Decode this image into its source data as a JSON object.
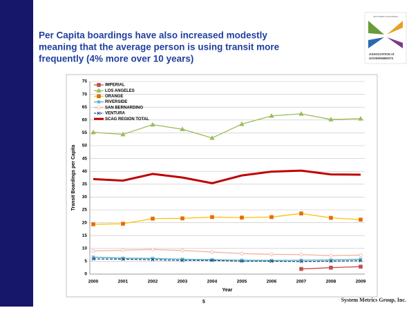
{
  "title_lines": [
    "Per Capita boardings have also increased modestly",
    "meaning that the average person is using transit more",
    "frequently (4% more over 10 years)"
  ],
  "logo": {
    "top_text": "SOUTHERN CALIFORNIA",
    "bottom_lines": [
      "ASSOCIATION of",
      "GOVERNMENTS"
    ]
  },
  "page_number": "5",
  "footer": "System Metrics Group, Inc.",
  "chart_data": {
    "type": "line",
    "xlabel": "Year",
    "ylabel": "Transit Boardings per Capita",
    "categories": [
      "2000",
      "2001",
      "2002",
      "2003",
      "2004",
      "2005",
      "2006",
      "2007",
      "2008",
      "2009"
    ],
    "ylim": [
      0,
      75
    ],
    "yticks": [
      0,
      5,
      10,
      15,
      20,
      25,
      30,
      35,
      40,
      45,
      50,
      55,
      60,
      65,
      70,
      75
    ],
    "grid": true,
    "legend": "upper left",
    "series": [
      {
        "name": "IMPERIAL",
        "color": "#c0504d",
        "marker": "square",
        "values": [
          null,
          null,
          null,
          null,
          null,
          null,
          null,
          2.0,
          2.5,
          2.9
        ]
      },
      {
        "name": "LOS ANGELES",
        "color": "#9bbb59",
        "marker": "triangle",
        "values": [
          55.2,
          54.4,
          58.2,
          56.4,
          53.0,
          58.4,
          61.6,
          62.4,
          60.2,
          60.5
        ]
      },
      {
        "name": "ORANGE",
        "color": "#ffc000",
        "marker_color": "#e46c0a",
        "marker": "square",
        "values": [
          19.4,
          19.6,
          21.6,
          21.7,
          22.2,
          22.0,
          22.2,
          23.6,
          21.9,
          21.2
        ]
      },
      {
        "name": "RIVERSIDE",
        "color": "#4bacc6",
        "marker": "star",
        "values": [
          6.6,
          6.2,
          6.1,
          5.8,
          5.6,
          5.4,
          5.3,
          5.4,
          5.5,
          5.8
        ]
      },
      {
        "name": "SAN BERNARDINO",
        "color": "#f2b09a",
        "marker": "circle",
        "values": [
          9.0,
          9.3,
          9.6,
          9.2,
          8.6,
          8.0,
          7.7,
          7.6,
          7.2,
          7.4
        ]
      },
      {
        "name": "VENTURA",
        "color": "#1f497d",
        "marker": "x",
        "dashed": true,
        "values": [
          5.9,
          5.8,
          5.6,
          5.3,
          5.3,
          5.0,
          5.0,
          4.9,
          5.0,
          5.2
        ]
      },
      {
        "name": "SCAG REGION TOTAL",
        "color": "#c00000",
        "marker": "none",
        "width": 3,
        "values": [
          37.0,
          36.4,
          39.0,
          37.6,
          35.4,
          38.4,
          39.9,
          40.3,
          38.8,
          38.7
        ]
      }
    ]
  }
}
